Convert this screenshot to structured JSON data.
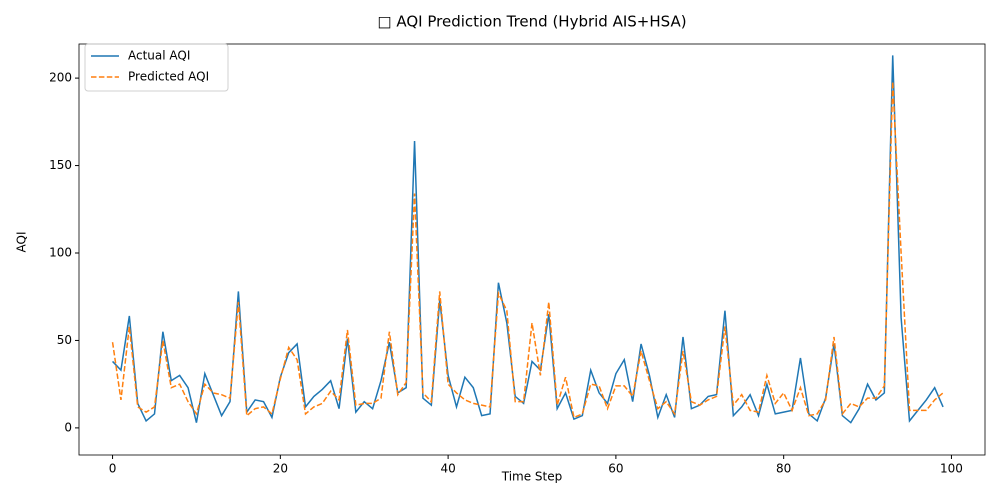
{
  "chart_data": {
    "type": "line",
    "title": "□ AQI Prediction Trend (Hybrid AIS+HSA)",
    "x_label": "Time Step",
    "y_label": "AQI",
    "x": [
      0,
      1,
      2,
      3,
      4,
      5,
      6,
      7,
      8,
      9,
      10,
      11,
      12,
      13,
      14,
      15,
      16,
      17,
      18,
      19,
      20,
      21,
      22,
      23,
      24,
      25,
      26,
      27,
      28,
      29,
      30,
      31,
      32,
      33,
      34,
      35,
      36,
      37,
      38,
      39,
      40,
      41,
      42,
      43,
      44,
      45,
      46,
      47,
      48,
      49,
      50,
      51,
      52,
      53,
      54,
      55,
      56,
      57,
      58,
      59,
      60,
      61,
      62,
      63,
      64,
      65,
      66,
      67,
      68,
      69,
      70,
      71,
      72,
      73,
      74,
      75,
      76,
      77,
      78,
      79,
      80,
      81,
      82,
      83,
      84,
      85,
      86,
      87,
      88,
      89,
      90,
      91,
      92,
      93,
      94,
      95,
      96,
      97,
      98,
      99
    ],
    "series": [
      {
        "name": "Actual AQI",
        "color": "#1f77b4",
        "dash": false,
        "values": [
          38,
          33,
          64,
          14,
          4,
          8,
          55,
          27,
          30,
          23,
          3,
          31,
          19,
          7,
          15,
          78,
          9,
          16,
          15,
          6,
          29,
          43,
          48,
          12,
          18,
          22,
          27,
          11,
          51,
          9,
          15,
          11,
          27,
          49,
          20,
          23,
          164,
          17,
          13,
          73,
          30,
          12,
          29,
          23,
          7,
          8,
          83,
          60,
          18,
          14,
          38,
          33,
          65,
          11,
          20,
          5,
          7,
          33,
          20,
          14,
          31,
          39,
          15,
          48,
          30,
          6,
          19,
          6,
          52,
          11,
          13,
          18,
          19,
          67,
          7,
          12,
          19,
          7,
          25,
          8,
          9,
          10,
          40,
          8,
          4,
          17,
          48,
          7,
          3,
          11,
          25,
          16,
          20,
          213,
          63,
          4,
          10,
          16,
          23,
          12
        ]
      },
      {
        "name": "Predicted AQI",
        "color": "#ff7f0e",
        "dash": true,
        "values": [
          49,
          16,
          58,
          12,
          9,
          12,
          50,
          23,
          25,
          15,
          8,
          25,
          20,
          19,
          17,
          72,
          7,
          11,
          12,
          8,
          28,
          46,
          39,
          8,
          12,
          14,
          21,
          16,
          56,
          13,
          14,
          14,
          17,
          55,
          19,
          26,
          134,
          20,
          15,
          78,
          25,
          20,
          16,
          14,
          13,
          12,
          77,
          67,
          15,
          15,
          60,
          30,
          72,
          13,
          29,
          6,
          8,
          25,
          24,
          11,
          24,
          24,
          18,
          44,
          27,
          11,
          15,
          8,
          44,
          15,
          13,
          16,
          18,
          58,
          13,
          19,
          10,
          9,
          30,
          14,
          20,
          10,
          23,
          7,
          8,
          16,
          52,
          8,
          14,
          12,
          17,
          17,
          24,
          198,
          100,
          10,
          10,
          10,
          16,
          20
        ]
      }
    ],
    "xlim": [
      -4,
      104
    ],
    "xticks": [
      0,
      20,
      40,
      60,
      80,
      100
    ],
    "ylim": [
      -15.5,
      219.5
    ],
    "yticks": [
      0,
      50,
      100,
      150,
      200
    ],
    "legend": "upper left",
    "grid": false
  }
}
